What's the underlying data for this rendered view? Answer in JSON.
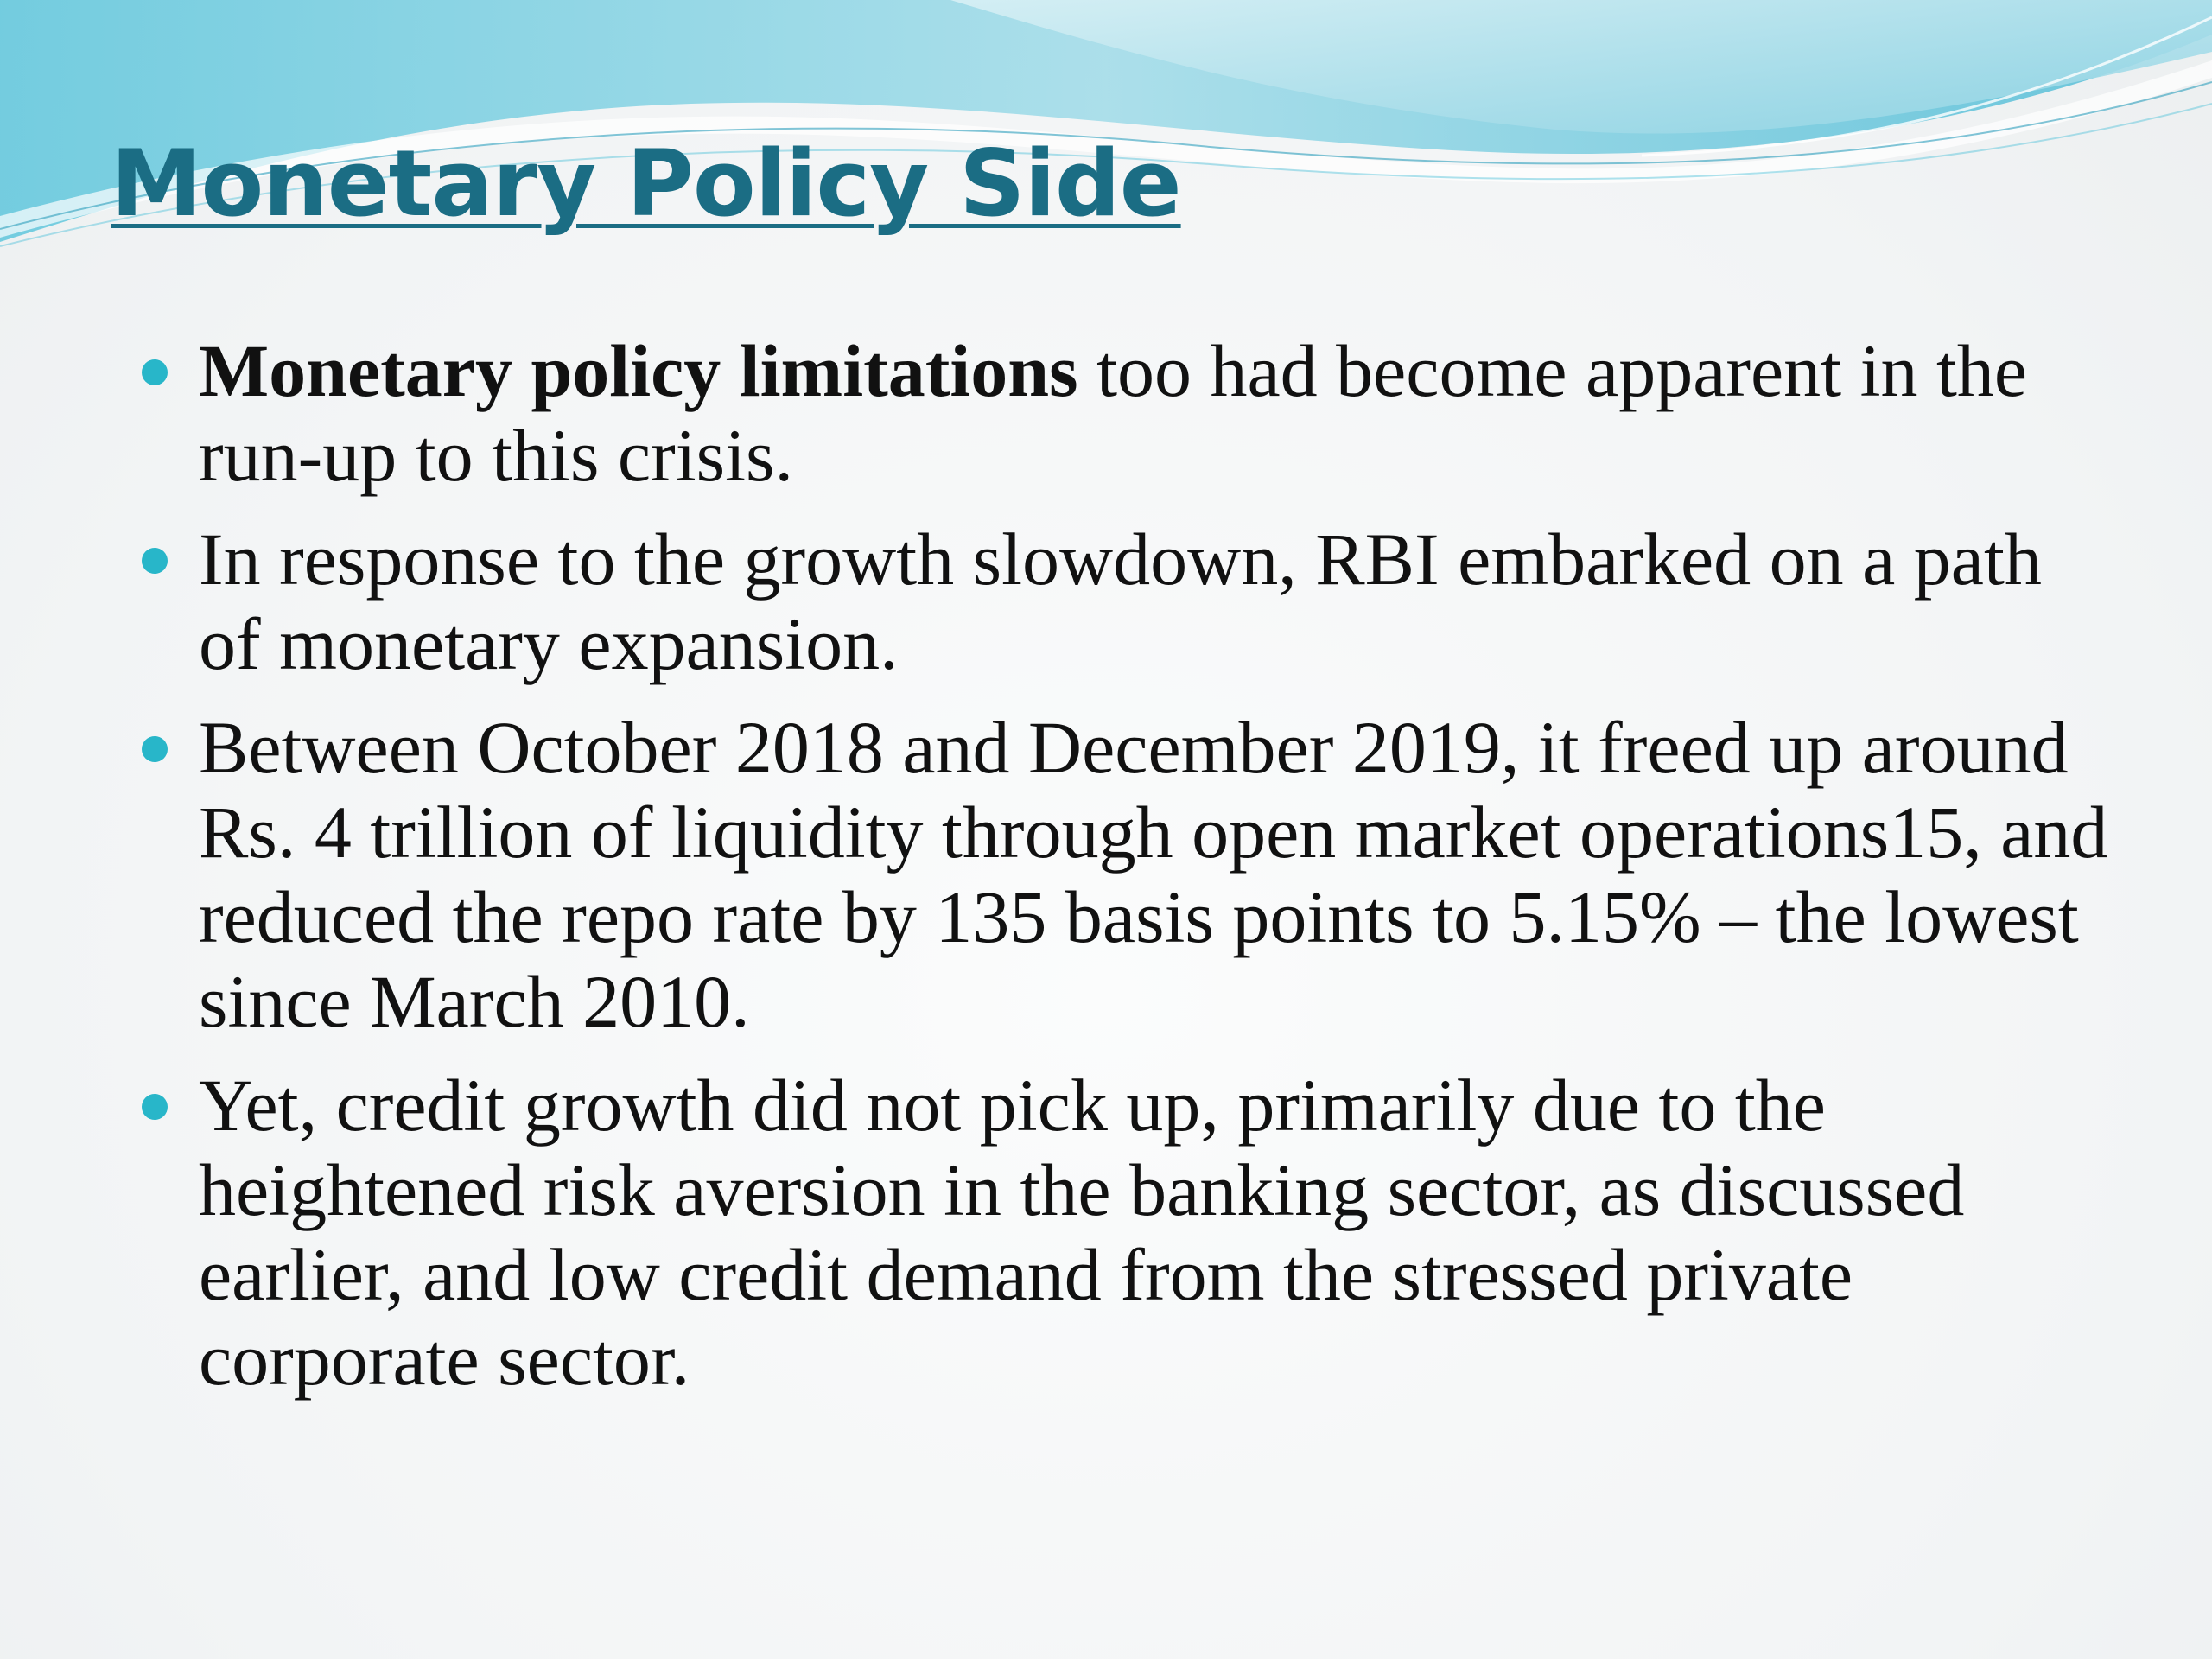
{
  "slide": {
    "title": "Monetary Policy Side",
    "bullets": [
      {
        "bold": "Monetary policy limitations",
        "text": " too had become apparent in the run-up to this crisis."
      },
      {
        "bold": "",
        "text": "In response to the growth slowdown, RBI embarked on a path of monetary expansion."
      },
      {
        "bold": "",
        "text": "Between October 2018 and December 2019,  it freed up around Rs. 4 trillion of liquidity through open market operations15, and reduced the repo rate by 135 basis points to 5.15% – the lowest since March 2010."
      },
      {
        "bold": "",
        "text": "Yet, credit growth did not pick up, primarily due to the heightened risk aversion in the banking sector, as discussed earlier, and low credit demand from the stressed private corporate sector."
      }
    ]
  },
  "colors": {
    "title": "#1b6d84",
    "bullet": "#28b6c9",
    "wave_light": "#bfe6ee",
    "wave_mid": "#7fcfe0",
    "wave_dark": "#3aa9c6"
  }
}
